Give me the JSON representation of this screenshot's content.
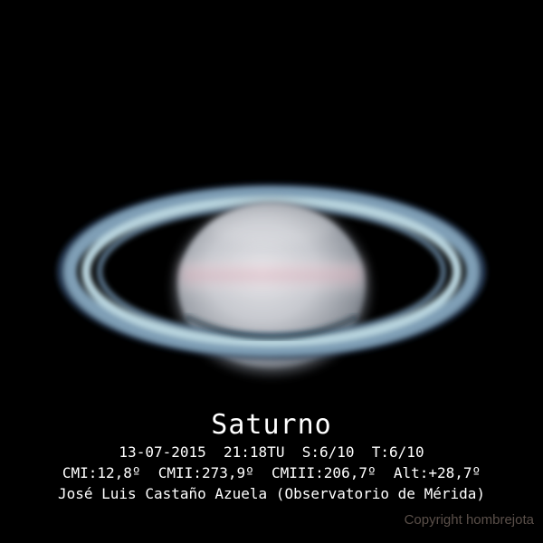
{
  "image": {
    "subject": "Saturn with rings",
    "background_color": "#000000"
  },
  "caption": {
    "title": "Saturno",
    "line1": "13-07-2015  21:18TU  S:6/10  T:6/10",
    "line2": "CMI:12,8º  CMII:273,9º  CMIII:206,7º  Alt:+28,7º",
    "line3": "José Luis Castaño Azuela (Observatorio de Mérida)"
  },
  "watermark": {
    "text": "Copyright hombrejota"
  }
}
